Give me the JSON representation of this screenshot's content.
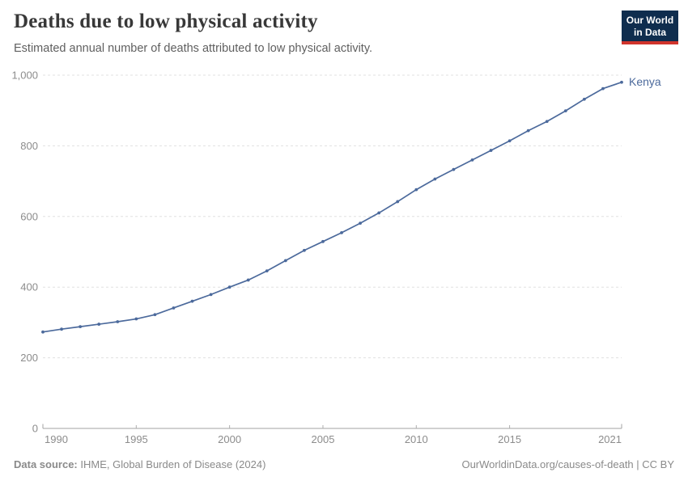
{
  "header": {
    "title": "Deaths due to low physical activity",
    "subtitle": "Estimated annual number of deaths attributed to low physical activity.",
    "logo": {
      "line1": "Our World",
      "line2": "in Data",
      "bg_color": "#0F2D4E",
      "accent_color": "#D0342C"
    }
  },
  "chart_data": {
    "type": "line",
    "title": "Deaths due to low physical activity",
    "x": [
      1990,
      1991,
      1992,
      1993,
      1994,
      1995,
      1996,
      1997,
      1998,
      1999,
      2000,
      2001,
      2002,
      2003,
      2004,
      2005,
      2006,
      2007,
      2008,
      2009,
      2010,
      2011,
      2012,
      2013,
      2014,
      2015,
      2016,
      2017,
      2018,
      2019,
      2020,
      2021
    ],
    "series": [
      {
        "name": "Kenya",
        "color": "#4C6A9C",
        "values": [
          273,
          281,
          288,
          295,
          302,
          310,
          322,
          341,
          360,
          379,
          400,
          420,
          446,
          475,
          504,
          529,
          554,
          581,
          610,
          642,
          676,
          706,
          733,
          760,
          787,
          814,
          843,
          869,
          899,
          932,
          962,
          980
        ]
      }
    ],
    "xlabel": "",
    "ylabel": "",
    "ylim": [
      0,
      1000
    ],
    "yticks": [
      0,
      200,
      400,
      600,
      800,
      1000
    ],
    "ytick_labels": [
      "0",
      "200",
      "400",
      "600",
      "800",
      "1,000"
    ],
    "xticks": [
      1990,
      1995,
      2000,
      2005,
      2010,
      2015,
      2021
    ],
    "xtick_labels": [
      "1990",
      "1995",
      "2000",
      "2005",
      "2010",
      "2015",
      "2021"
    ],
    "grid": "horizontal-dashed",
    "legend_position": "end-of-line-label",
    "entity_label": "Kenya"
  },
  "footer": {
    "source_label": "Data source:",
    "source_text": " IHME, Global Burden of Disease (2024)",
    "link_text": "OurWorldinData.org/causes-of-death | CC BY"
  },
  "colors": {
    "line": "#4C6A9C",
    "entity_label": "#4C6A9C",
    "gridline": "#e0e0e0",
    "axis_line": "#a3a3a3",
    "tick_mark": "#adadad",
    "tick_label": "#8c8c8c",
    "title_text": "#383838",
    "subtitle_text": "#5f5f5f",
    "footer_text": "#8a8a8a"
  }
}
